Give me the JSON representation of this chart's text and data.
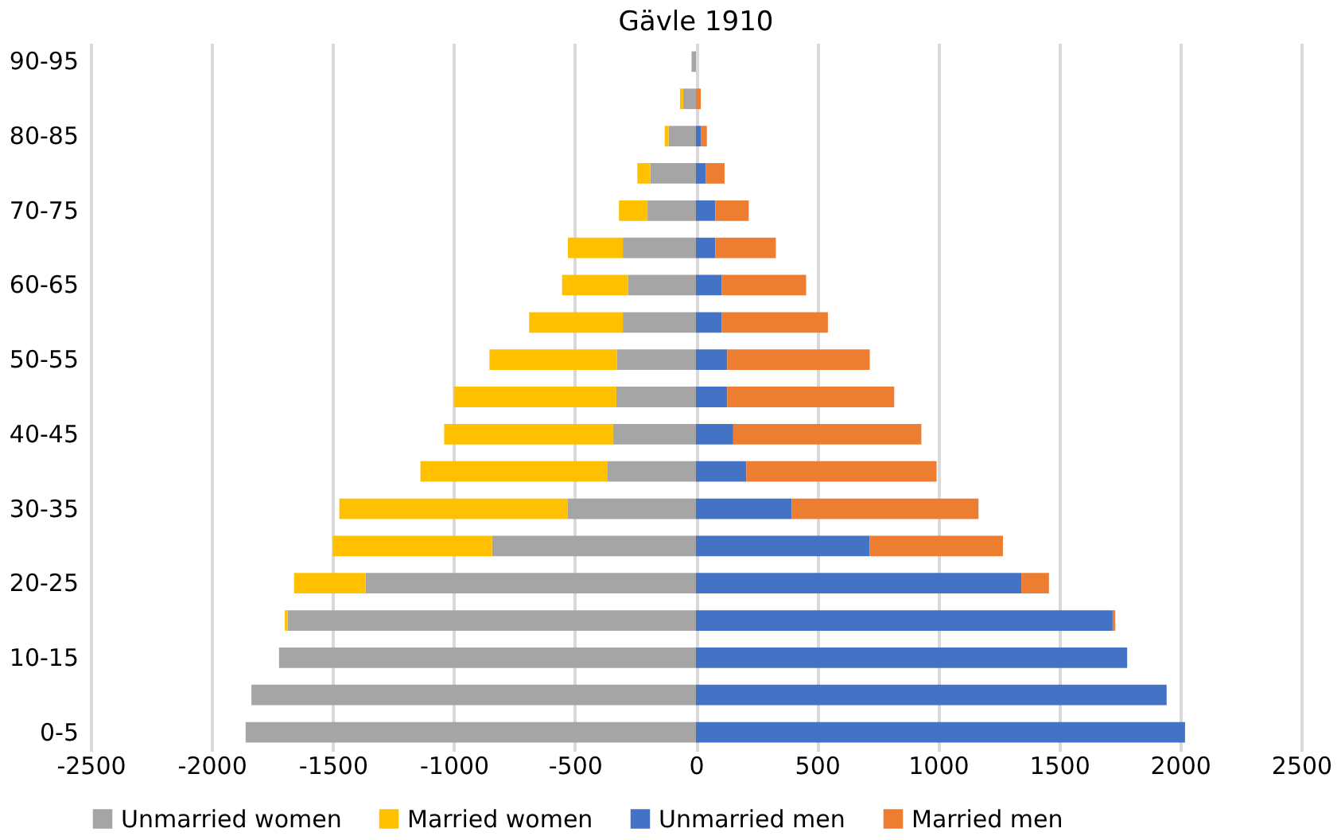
{
  "chart_data": {
    "type": "bar",
    "orientation": "horizontal",
    "stacked": true,
    "title": "Gävle 1910",
    "categories": [
      "90-95",
      null,
      "80-85",
      null,
      "70-75",
      null,
      "60-65",
      null,
      "50-55",
      null,
      "40-45",
      null,
      "30-35",
      null,
      "20-25",
      null,
      "10-15",
      null,
      "0-5"
    ],
    "series": [
      {
        "name": "Unmarried women",
        "color": "#a5a5a5",
        "values": [
          -18,
          -53,
          -113,
          -189,
          -200,
          -302,
          -280,
          -302,
          -327,
          -329,
          -342,
          -367,
          -531,
          -842,
          -1364,
          -1687,
          -1722,
          -1836,
          -1860
        ]
      },
      {
        "name": "Married women",
        "color": "#ffc000",
        "values": [
          0,
          -13,
          -16,
          -53,
          -118,
          -227,
          -273,
          -387,
          -526,
          -671,
          -698,
          -771,
          -942,
          -658,
          -296,
          -11,
          0,
          0,
          0
        ]
      },
      {
        "name": "Unmarried men",
        "color": "#4472c4",
        "values": [
          0,
          0,
          20,
          40,
          80,
          80,
          107,
          107,
          129,
          129,
          154,
          208,
          395,
          717,
          1344,
          1721,
          1781,
          1944,
          2020
        ]
      },
      {
        "name": "Married men",
        "color": "#ed7d31",
        "values": [
          0,
          20,
          25,
          78,
          138,
          250,
          348,
          438,
          589,
          690,
          777,
          786,
          772,
          551,
          114,
          11,
          0,
          0,
          0
        ]
      }
    ],
    "xlim": [
      -2500,
      2500
    ],
    "xticks": [
      -2500,
      -2000,
      -1500,
      -1000,
      -500,
      0,
      500,
      1000,
      1500,
      2000,
      2500
    ],
    "grid": "x",
    "legend": "bottom"
  }
}
